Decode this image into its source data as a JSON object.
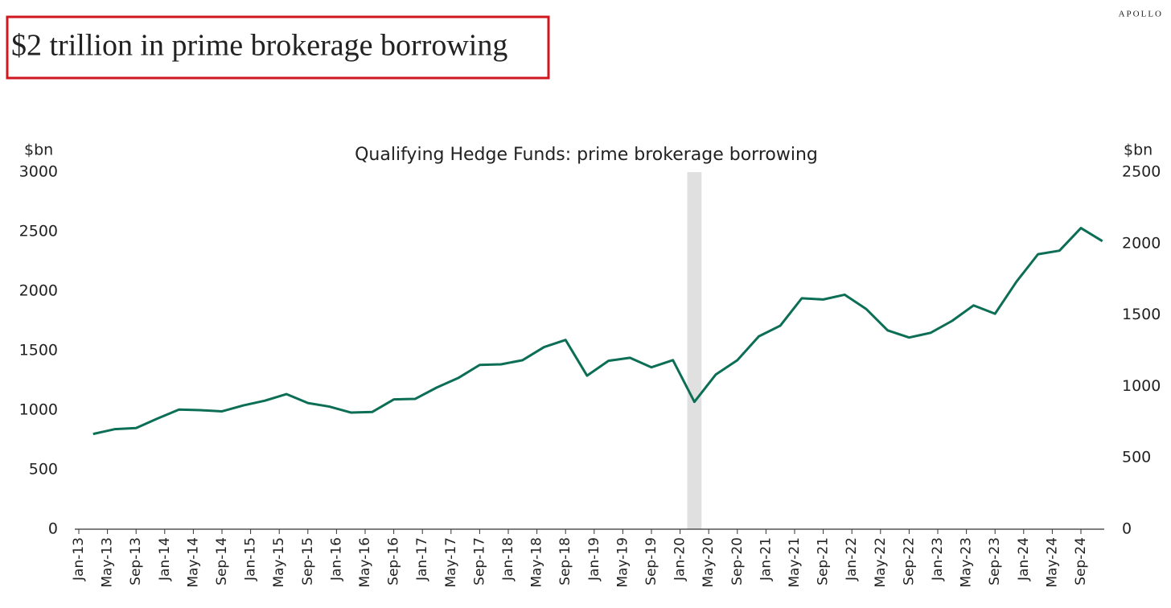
{
  "brand": "APOLLO",
  "headline": "$2 trillion in prime brokerage borrowing",
  "chart_data": {
    "type": "line",
    "title": "Qualifying Hedge Funds: prime brokerage borrowing",
    "y_label": "$bn",
    "y2_label": "$bn",
    "x": [
      "Mar-13",
      "Jun-13",
      "Sep-13",
      "Dec-13",
      "Mar-14",
      "Jun-14",
      "Sep-14",
      "Dec-14",
      "Mar-15",
      "Jun-15",
      "Sep-15",
      "Dec-15",
      "Mar-16",
      "Jun-16",
      "Sep-16",
      "Dec-16",
      "Mar-17",
      "Jun-17",
      "Sep-17",
      "Dec-17",
      "Mar-18",
      "Jun-18",
      "Sep-18",
      "Dec-18",
      "Mar-19",
      "Jun-19",
      "Sep-19",
      "Dec-19",
      "Mar-20",
      "Jun-20",
      "Sep-20",
      "Dec-20",
      "Mar-21",
      "Jun-21",
      "Sep-21",
      "Dec-21",
      "Mar-22",
      "Jun-22",
      "Sep-22",
      "Dec-22",
      "Mar-23",
      "Jun-23",
      "Sep-23",
      "Dec-23",
      "Mar-24",
      "Jun-24",
      "Sep-24",
      "Dec-24"
    ],
    "series": [
      {
        "color": "#0b6e55",
        "values": [
          800,
          840,
          850,
          930,
          1005,
          1000,
          990,
          1040,
          1080,
          1135,
          1060,
          1030,
          980,
          985,
          1090,
          1095,
          1190,
          1270,
          1380,
          1385,
          1420,
          1530,
          1590,
          1290,
          1415,
          1440,
          1360,
          1420,
          1070,
          1300,
          1420,
          1620,
          1710,
          1940,
          1930,
          1970,
          1850,
          1670,
          1610,
          1650,
          1750,
          1880,
          1810,
          2080,
          2310,
          2340,
          2530,
          2420
        ]
      }
    ],
    "shaded_span": [
      "Feb-20",
      "Apr-20"
    ],
    "shade_color": "#e0e0e0",
    "xticks": [
      "Jan-13",
      "May-13",
      "Sep-13",
      "Jan-14",
      "May-14",
      "Sep-14",
      "Jan-15",
      "May-15",
      "Sep-15",
      "Jan-16",
      "May-16",
      "Sep-16",
      "Jan-17",
      "May-17",
      "Sep-17",
      "Jan-18",
      "May-18",
      "Sep-18",
      "Jan-19",
      "May-19",
      "Sep-19",
      "Jan-20",
      "May-20",
      "Sep-20",
      "Jan-21",
      "May-21",
      "Sep-21",
      "Jan-22",
      "May-22",
      "Sep-22",
      "Jan-23",
      "May-23",
      "Sep-23",
      "Jan-24",
      "May-24",
      "Sep-24"
    ],
    "ylim": [
      0,
      3000
    ],
    "yticks": [
      0,
      500,
      1000,
      1500,
      2000,
      2500,
      3000
    ],
    "y2lim": [
      0,
      2500
    ],
    "y2ticks": [
      0,
      500,
      1000,
      1500,
      2000,
      2500
    ],
    "grid": false
  }
}
